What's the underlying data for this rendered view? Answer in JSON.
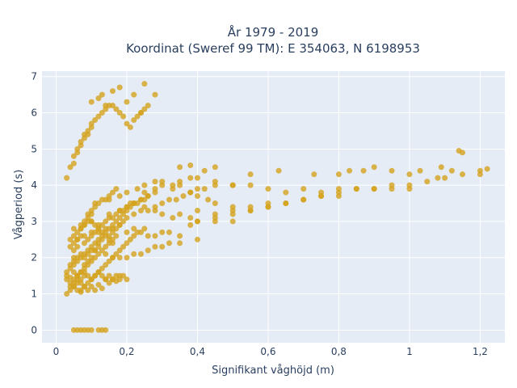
{
  "chart_data": {
    "type": "scatter",
    "title": [
      "År 1979 - 2019",
      "Koordinat (Sweref 99 TM): E 354063, N 6198953"
    ],
    "xlabel": "Signifikant våghöjd (m)",
    "ylabel": "Vågperiod (s)",
    "xlim": [
      -0.04,
      1.27
    ],
    "ylim": [
      -0.35,
      7.15
    ],
    "x_ticks": [
      0,
      0.2,
      0.4,
      0.6,
      0.8,
      1.0,
      1.2
    ],
    "x_tick_labels": [
      "0",
      "0,2",
      "0,4",
      "0,6",
      "0,8",
      "1",
      "1,2"
    ],
    "y_ticks": [
      0,
      1,
      2,
      3,
      4,
      5,
      6,
      7
    ],
    "y_tick_labels": [
      "0",
      "1",
      "2",
      "3",
      "4",
      "5",
      "6",
      "7"
    ],
    "grid": true,
    "legend": "none",
    "plot_bgcolor": "#E5ECF6",
    "marker_color": "#D4A21E",
    "series": [
      {
        "x": [
          0.05,
          0.06,
          0.07,
          0.08,
          0.09,
          0.1,
          0.12,
          0.13,
          0.14,
          0.03,
          0.04,
          0.05,
          0.05,
          0.06,
          0.06,
          0.07,
          0.07,
          0.08,
          0.08,
          0.09,
          0.1,
          0.11,
          0.12,
          0.13,
          0.14,
          0.15,
          0.16,
          0.17,
          0.18,
          0.04,
          0.05,
          0.06,
          0.07,
          0.08,
          0.09,
          0.1,
          0.11,
          0.12,
          0.14,
          0.16,
          0.18,
          0.2,
          0.22,
          0.24,
          0.26,
          0.28,
          0.3,
          0.32,
          0.35,
          0.4,
          0.04,
          0.05,
          0.06,
          0.08,
          0.1,
          0.12,
          0.14,
          0.16,
          0.18,
          0.2,
          0.22,
          0.24,
          0.26,
          0.28,
          0.3,
          0.32,
          0.35,
          0.38,
          0.4,
          0.45,
          0.5,
          0.05,
          0.07,
          0.1,
          0.12,
          0.15,
          0.18,
          0.2,
          0.22,
          0.25,
          0.28,
          0.3,
          0.33,
          0.35,
          0.38,
          0.4,
          0.45,
          0.5,
          0.55,
          0.6,
          0.15,
          0.18,
          0.2,
          0.23,
          0.25,
          0.28,
          0.3,
          0.33,
          0.35,
          0.38,
          0.4,
          0.43,
          0.45,
          0.5,
          0.55,
          0.6,
          0.65,
          0.7,
          0.75,
          0.8,
          0.25,
          0.28,
          0.3,
          0.33,
          0.35,
          0.38,
          0.4,
          0.45,
          0.5,
          0.55,
          0.6,
          0.65,
          0.7,
          0.75,
          0.8,
          0.85,
          0.9,
          0.95,
          1.0,
          0.4,
          0.45,
          0.5,
          0.55,
          0.6,
          0.65,
          0.7,
          0.75,
          0.8,
          0.85,
          0.9,
          0.95,
          1.0,
          1.05,
          1.1,
          1.15,
          1.2,
          0.35,
          0.38,
          0.42,
          0.45,
          0.55,
          0.63,
          0.73,
          0.8,
          0.83,
          0.87,
          0.9,
          0.95,
          1.0,
          1.03,
          1.08,
          1.12,
          1.15,
          1.2,
          1.22,
          1.14,
          1.09,
          0.03,
          0.04,
          0.05,
          0.05,
          0.06,
          0.06,
          0.07,
          0.07,
          0.08,
          0.08,
          0.09,
          0.09,
          0.1,
          0.1,
          0.11,
          0.12,
          0.13,
          0.14,
          0.15,
          0.16,
          0.17,
          0.18,
          0.19,
          0.2,
          0.21,
          0.22,
          0.23,
          0.24,
          0.25,
          0.03,
          0.04,
          0.05,
          0.06,
          0.07,
          0.08,
          0.09,
          0.1,
          0.11,
          0.12,
          0.13,
          0.15,
          0.16,
          0.17,
          0.18,
          0.19,
          0.2,
          0.22,
          0.24,
          0.26,
          0.28,
          0.3,
          0.32,
          0.34,
          0.36,
          0.38,
          0.4,
          0.42,
          0.45,
          0.5,
          0.03,
          0.04,
          0.05,
          0.06,
          0.07,
          0.08,
          0.09,
          0.1,
          0.11,
          0.12,
          0.13,
          0.14,
          0.15,
          0.16,
          0.17,
          0.18,
          0.19,
          0.2,
          0.21,
          0.22,
          0.23,
          0.25,
          0.03,
          0.04,
          0.05,
          0.06,
          0.07,
          0.08,
          0.09,
          0.1,
          0.11,
          0.12,
          0.13,
          0.14,
          0.15,
          0.16,
          0.17,
          0.18,
          0.19,
          0.2,
          0.21,
          0.22,
          0.23,
          0.24,
          0.25,
          0.26,
          0.04,
          0.05,
          0.06,
          0.07,
          0.08,
          0.09,
          0.1,
          0.11,
          0.12,
          0.13,
          0.14,
          0.15,
          0.16,
          0.04,
          0.05,
          0.06,
          0.07,
          0.08,
          0.09,
          0.1,
          0.11,
          0.12,
          0.13,
          0.14,
          0.15,
          0.16,
          0.17,
          0.06,
          0.07,
          0.08,
          0.09,
          0.1,
          0.11,
          0.12,
          0.13,
          0.14,
          0.15,
          0.16,
          0.17,
          0.18,
          0.19,
          0.2,
          0.05,
          0.05,
          0.06,
          0.06,
          0.07,
          0.07,
          0.08,
          0.08,
          0.09,
          0.09,
          0.1,
          0.1,
          0.11,
          0.11,
          0.12,
          0.13,
          0.14,
          0.15,
          0.16,
          0.17,
          0.08,
          0.09,
          0.1,
          0.11,
          0.12,
          0.13,
          0.14,
          0.15,
          0.16,
          0.17,
          0.18,
          0.19,
          0.2,
          0.21,
          0.22,
          0.24,
          0.26,
          0.28,
          0.1,
          0.12,
          0.13,
          0.14,
          0.16,
          0.18,
          0.2,
          0.22,
          0.24,
          0.25,
          0.26,
          0.28
        ],
        "y": [
          0,
          0,
          0,
          0,
          0,
          0,
          0,
          0,
          0,
          1.5,
          1.45,
          1.6,
          1.2,
          1.1,
          1.4,
          1.3,
          1.05,
          1.2,
          1.5,
          1.1,
          1.2,
          1.1,
          1.25,
          1.15,
          1.4,
          1.3,
          1.4,
          1.35,
          1.5,
          1.8,
          1.9,
          2.0,
          2.1,
          2.0,
          2.1,
          2.2,
          2.2,
          2.3,
          2.1,
          2.0,
          2.0,
          2.0,
          2.1,
          2.1,
          2.2,
          2.3,
          2.3,
          2.4,
          2.4,
          2.5,
          2.3,
          2.4,
          2.5,
          2.6,
          2.7,
          2.7,
          2.8,
          2.8,
          2.9,
          2.7,
          2.8,
          2.7,
          2.6,
          2.6,
          2.7,
          2.7,
          2.6,
          2.9,
          3.0,
          3.0,
          3.0,
          2.8,
          2.9,
          3.0,
          2.9,
          3.2,
          3.3,
          3.4,
          3.5,
          3.4,
          3.3,
          3.2,
          3.1,
          3.2,
          3.1,
          3.3,
          3.2,
          3.3,
          3.3,
          3.4,
          3.6,
          3.7,
          3.8,
          3.9,
          3.8,
          3.9,
          4.0,
          3.9,
          4.0,
          3.8,
          3.7,
          3.6,
          3.5,
          3.4,
          3.4,
          3.5,
          3.5,
          3.6,
          3.7,
          3.7,
          4.0,
          4.1,
          4.1,
          4.0,
          4.1,
          4.2,
          4.2,
          4.1,
          4.0,
          4.0,
          3.9,
          3.8,
          3.9,
          3.8,
          3.9,
          3.9,
          3.9,
          3.9,
          3.9,
          3.0,
          3.1,
          3.2,
          3.3,
          3.4,
          3.5,
          3.6,
          3.7,
          3.8,
          3.9,
          3.9,
          4.0,
          4.0,
          4.1,
          4.2,
          4.3,
          4.3,
          4.5,
          4.55,
          4.4,
          4.5,
          4.3,
          4.4,
          4.3,
          4.3,
          4.4,
          4.4,
          4.5,
          4.4,
          4.3,
          4.4,
          4.2,
          4.4,
          4.9,
          4.4,
          4.45,
          4.95,
          4.5,
          4.2,
          4.5,
          4.6,
          4.8,
          4.9,
          5.0,
          5.1,
          5.2,
          5.3,
          5.4,
          5.4,
          5.5,
          5.6,
          5.7,
          5.8,
          5.9,
          6.0,
          6.1,
          6.2,
          6.2,
          6.1,
          6.0,
          5.9,
          5.7,
          5.6,
          5.8,
          5.9,
          6.0,
          6.1,
          1.4,
          1.2,
          1.3,
          1.5,
          1.6,
          1.8,
          1.9,
          2.0,
          2.2,
          2.4,
          2.5,
          2.6,
          2.7,
          2.8,
          2.9,
          3.0,
          3.1,
          3.2,
          3.3,
          3.3,
          3.4,
          3.5,
          3.6,
          3.6,
          3.7,
          3.8,
          3.9,
          3.9,
          4.0,
          4.0,
          1.0,
          1.1,
          1.2,
          1.3,
          1.1,
          1.2,
          1.3,
          1.4,
          1.5,
          1.6,
          1.7,
          1.8,
          1.9,
          2.0,
          2.1,
          2.2,
          2.3,
          2.4,
          2.5,
          2.6,
          2.7,
          2.8,
          1.6,
          1.7,
          1.8,
          1.9,
          2.0,
          2.1,
          2.2,
          2.3,
          2.4,
          2.5,
          2.6,
          2.7,
          2.8,
          2.9,
          3.0,
          3.1,
          3.2,
          3.3,
          3.4,
          3.5,
          3.5,
          3.6,
          3.6,
          3.7,
          2.5,
          2.6,
          2.7,
          2.8,
          2.9,
          3.0,
          3.0,
          2.9,
          2.8,
          2.7,
          2.6,
          2.5,
          2.4,
          1.3,
          1.4,
          1.5,
          1.6,
          1.7,
          1.8,
          1.9,
          2.0,
          2.1,
          2.2,
          2.3,
          2.4,
          2.5,
          2.6,
          1.5,
          1.4,
          1.6,
          1.5,
          1.4,
          1.5,
          1.6,
          1.5,
          1.4,
          1.5,
          1.4,
          1.5,
          1.4,
          1.5,
          1.4,
          2.0,
          2.2,
          2.3,
          2.5,
          2.6,
          2.8,
          2.9,
          3.0,
          3.1,
          3.2,
          3.2,
          3.3,
          3.4,
          3.5,
          3.5,
          3.6,
          3.6,
          3.7,
          3.8,
          3.9,
          2.4,
          2.5,
          2.6,
          2.7,
          2.8,
          2.9,
          3.0,
          3.1,
          3.1,
          3.2,
          3.3,
          3.3,
          3.4,
          3.5,
          3.5,
          3.6,
          3.7,
          3.8,
          6.3,
          6.4,
          6.5,
          6.2,
          6.6,
          6.7,
          6.3,
          6.5,
          6.0,
          6.8,
          6.2,
          6.5
        ]
      }
    ]
  }
}
